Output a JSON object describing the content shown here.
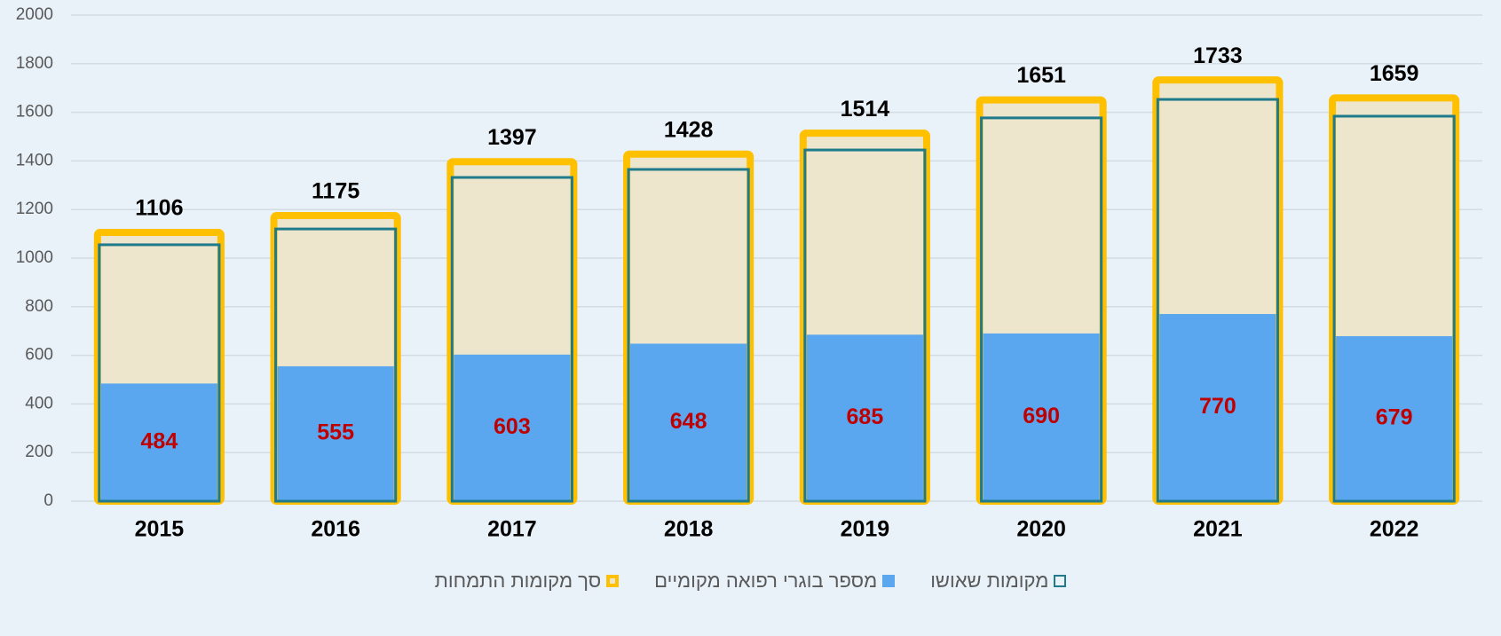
{
  "chart_data": {
    "type": "overlap_bar",
    "categories": [
      "2015",
      "2016",
      "2017",
      "2018",
      "2019",
      "2020",
      "2021",
      "2022"
    ],
    "series": [
      {
        "name": "מקומות שאושו",
        "color": "#1f7a8c",
        "values": [
          1055,
          1120,
          1332,
          1365,
          1445,
          1577,
          1653,
          1584
        ]
      },
      {
        "name": "מספר בוגרי רפואה מקומיים",
        "color": "#5aa7f0",
        "label_color": "#c00000",
        "values": [
          484,
          555,
          603,
          648,
          685,
          690,
          770,
          679
        ]
      },
      {
        "name": "סך מקומות התמחות",
        "color": "#ffc000",
        "fill": "#ede6cc",
        "label_color": "#000000",
        "values": [
          1106,
          1175,
          1397,
          1428,
          1514,
          1651,
          1733,
          1659
        ]
      }
    ],
    "ylim": [
      0,
      2000
    ],
    "yticks": [
      0,
      200,
      400,
      600,
      800,
      1000,
      1200,
      1400,
      1600,
      1800,
      2000
    ],
    "grid": true
  }
}
